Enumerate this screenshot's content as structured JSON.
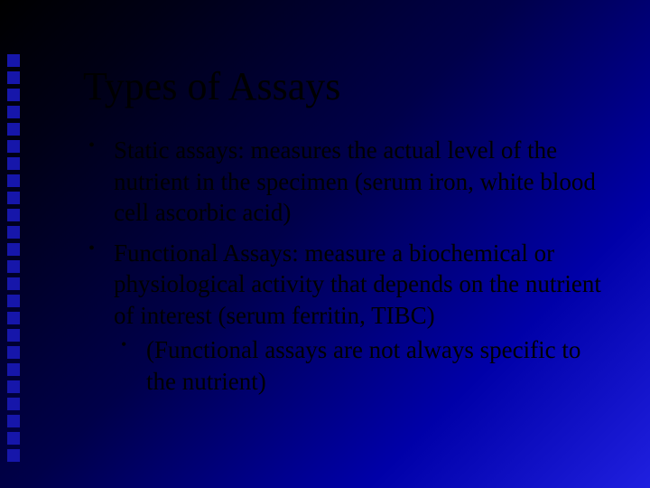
{
  "slide": {
    "title": "Types of Assays",
    "bullets": [
      {
        "text": "Static assays: measures the actual level of the nutrient in the specimen (serum iron, white blood cell ascorbic acid)"
      },
      {
        "text": "Functional Assays: measure a biochemical or physiological activity that depends on the nutrient of interest (serum ferritin, TIBC)",
        "sub": [
          "(Functional assays are not always specific to the nutrient)"
        ]
      }
    ]
  },
  "style": {
    "background_gradient": [
      "#000000",
      "#000015",
      "#00004a",
      "#0000a8",
      "#2020e0"
    ],
    "title_color": "#000000",
    "title_fontsize": 44,
    "body_color": "#000000",
    "body_fontsize": 27,
    "font_family": "Times New Roman",
    "decorative_square_color": "#1616aa",
    "decorative_square_size": 14,
    "decorative_square_count": 24
  }
}
